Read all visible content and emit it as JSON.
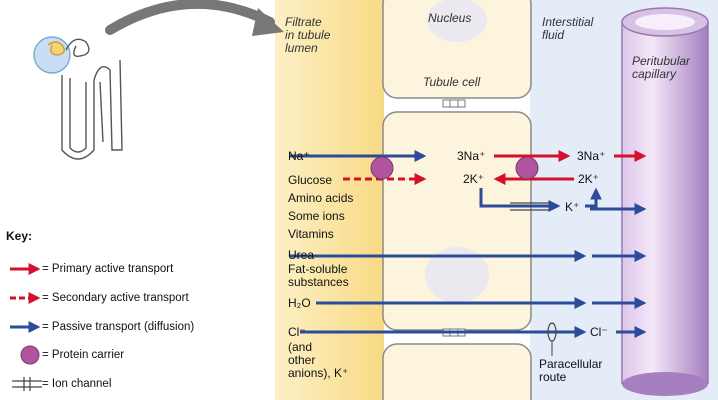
{
  "regions": {
    "filtrate": "Filtrate\nin tubule\nlumen",
    "nucleus": "Nucleus",
    "tubule_cell": "Tubule cell",
    "interstitial": "Interstitial\nfluid",
    "capillary": "Peritubular\ncapillary"
  },
  "substances": {
    "na": "Na⁺",
    "glucose": "Glucose",
    "amino": "Amino acids",
    "ions": "Some ions",
    "vitamins": "Vitamins",
    "urea": "Urea",
    "fat": "Fat-soluble\nsubstances",
    "h2o": "H₂O",
    "cl": "Cl⁻",
    "anions": "(and\nother\nanions), K⁺"
  },
  "pump": {
    "na_in": "3Na⁺",
    "na_out": "3Na⁺",
    "k_in": "2K⁺",
    "k_out": "2K⁺",
    "k_channel": "K⁺",
    "cl_out": "Cl⁻"
  },
  "paracellular": "Paracellular\nroute",
  "key": {
    "title": "Key:",
    "primary": "= Primary active transport",
    "secondary": "= Secondary active transport",
    "passive": "= Passive transport (diffusion)",
    "carrier": "= Protein carrier",
    "channel": "= Ion channel"
  },
  "colors": {
    "active_red": "#d4102a",
    "passive_blue": "#2b4c9a",
    "carrier_purple": "#b0559d",
    "filtrate_yellow": "#fbe7a9",
    "interstitial_blue": "#dce8f6",
    "capillary_purple": "#c4a3d4"
  }
}
